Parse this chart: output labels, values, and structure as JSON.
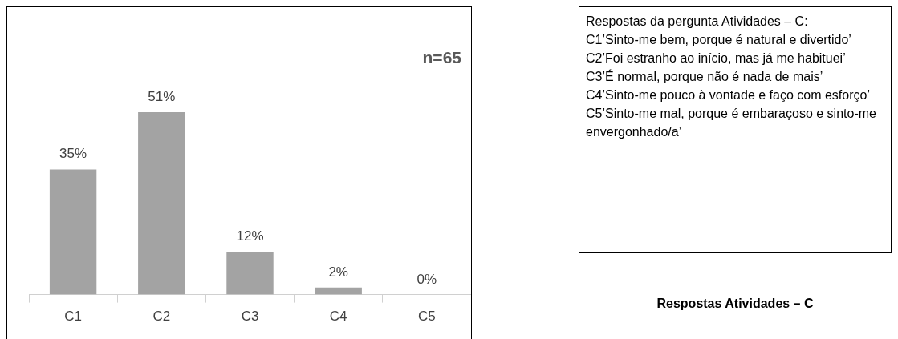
{
  "chart_data": {
    "type": "bar",
    "title": "Respostas Atividades – C",
    "categories": [
      "C1",
      "C2",
      "C3",
      "C4",
      "C5"
    ],
    "values": [
      35,
      51,
      12,
      2,
      0
    ],
    "value_labels": [
      "35%",
      "51%",
      "12%",
      "2%",
      "0%"
    ],
    "color": "#a3a3a3",
    "annotations": [
      "n=65",
      "Respostas da pergunta Atividades – C:",
      "C1’Sinto-me bem, porque é natural e divertido’",
      "C2’Foi estranho ao início, mas já me habituei’",
      "C3’É normal, porque não é nada de mais’",
      "C4’Sinto-me pouco à vontade e faço com esforço’",
      "C5’Sinto-me mal, porque é embaraçoso e sinto-me envergonhado/a’"
    ],
    "grid": false,
    "legend": false
  }
}
